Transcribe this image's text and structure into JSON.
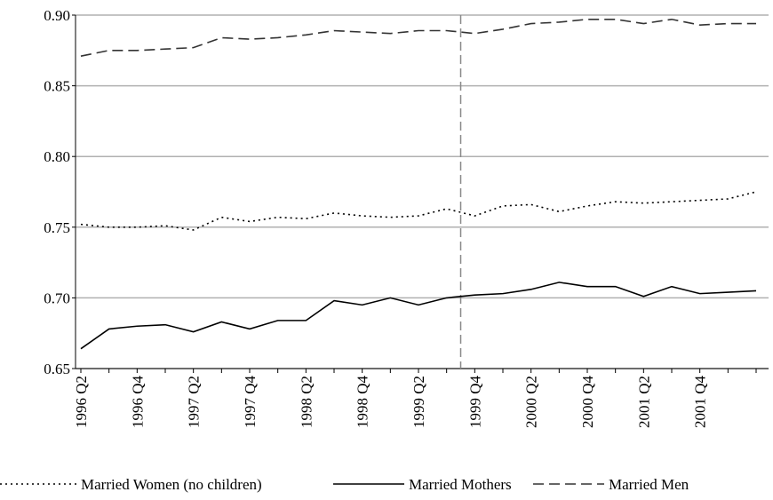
{
  "chart_data": {
    "type": "line",
    "categories": [
      "1996 Q2",
      null,
      "1996 Q4",
      null,
      "1997 Q2",
      null,
      "1997 Q4",
      null,
      "1998 Q2",
      null,
      "1998 Q4",
      null,
      "1999 Q2",
      null,
      "1999 Q4",
      null,
      "2000 Q2",
      null,
      "2000 Q4",
      null,
      "2001 Q2",
      null,
      "2001 Q4",
      null,
      null
    ],
    "series": [
      {
        "name": "Married Women (no children)",
        "color": "#000000",
        "dash": "dotted",
        "values": [
          0.752,
          0.75,
          0.75,
          0.751,
          0.748,
          0.757,
          0.754,
          0.757,
          0.756,
          0.76,
          0.758,
          0.757,
          0.758,
          0.763,
          0.758,
          0.765,
          0.766,
          0.761,
          0.765,
          0.768,
          0.767,
          0.768,
          0.769,
          0.77,
          0.775
        ]
      },
      {
        "name": "Married Mothers",
        "color": "#000000",
        "dash": "solid",
        "values": [
          0.664,
          0.678,
          0.68,
          0.681,
          0.676,
          0.683,
          0.678,
          0.684,
          0.684,
          0.698,
          0.695,
          0.7,
          0.695,
          0.7,
          0.702,
          0.703,
          0.706,
          0.711,
          0.708,
          0.708,
          0.701,
          0.708,
          0.703,
          0.704,
          0.705
        ]
      },
      {
        "name": "Married Men",
        "color": "#333333",
        "dash": "dashed",
        "values": [
          0.871,
          0.875,
          0.875,
          0.876,
          0.877,
          0.884,
          0.883,
          0.884,
          0.886,
          0.889,
          0.888,
          0.887,
          0.889,
          0.889,
          0.887,
          0.89,
          0.894,
          0.895,
          0.897,
          0.897,
          0.894,
          0.897,
          0.893,
          0.894,
          0.894
        ]
      }
    ],
    "vline": 13.5,
    "ylim": [
      0.65,
      0.9
    ],
    "yticks": [
      {
        "value": 0.65,
        "label": "0.65"
      },
      {
        "value": 0.7,
        "label": "0.70"
      },
      {
        "value": 0.75,
        "label": "0.75"
      },
      {
        "value": 0.8,
        "label": "0.80"
      },
      {
        "value": 0.85,
        "label": "0.85"
      },
      {
        "value": 0.9,
        "label": "0.90"
      }
    ],
    "grid": true,
    "legend": "bottom"
  }
}
